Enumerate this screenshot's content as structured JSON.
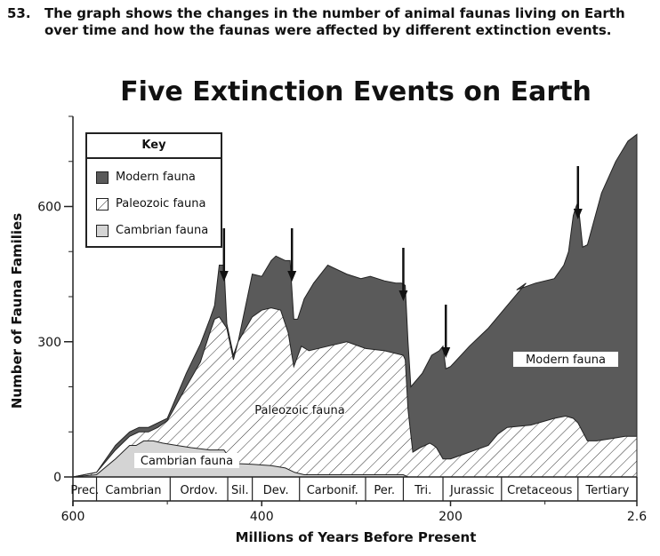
{
  "question": {
    "number": "53.",
    "text": "The graph shows the changes in the number of animal faunas living on Earth over time and how the faunas were affected by different extinction events."
  },
  "colors": {
    "modern": "#5a5a5a",
    "cambrian": "#d4d4d4",
    "hatch": "#333333"
  },
  "chart_data": {
    "type": "area",
    "title": "Five Extinction Events on Earth",
    "xlabel": "Millions of Years Before Present",
    "ylabel": "Number of Fauna Families",
    "x_reversed": true,
    "xlim": [
      600,
      2.6
    ],
    "ylim": [
      0,
      800
    ],
    "x_ticks": [
      {
        "value": 600,
        "label": "600"
      },
      {
        "value": 400,
        "label": "400"
      },
      {
        "value": 200,
        "label": "200"
      },
      {
        "value": 2.6,
        "label": "2.6"
      }
    ],
    "y_ticks": [
      {
        "value": 0,
        "label": "0"
      },
      {
        "value": 300,
        "label": "300"
      },
      {
        "value": 600,
        "label": "600"
      }
    ],
    "key": {
      "title": "Key",
      "entries": [
        {
          "label": "Modern fauna",
          "color": "#5a5a5a",
          "pattern": "solid"
        },
        {
          "label": "Paleozoic fauna",
          "color": "#333333",
          "pattern": "hatch"
        },
        {
          "label": "Cambrian fauna",
          "color": "#d4d4d4",
          "pattern": "solid"
        }
      ]
    },
    "region_labels": [
      "Modern fauna",
      "Paleozoic fauna",
      "Cambrian fauna"
    ],
    "periods": [
      {
        "label": "Prec.",
        "start": 600,
        "end": 575
      },
      {
        "label": "Cambrian",
        "start": 575,
        "end": 497
      },
      {
        "label": "Ordov.",
        "start": 497,
        "end": 436
      },
      {
        "label": "Sil.",
        "start": 436,
        "end": 410
      },
      {
        "label": "Dev.",
        "start": 410,
        "end": 360
      },
      {
        "label": "Carbonif.",
        "start": 360,
        "end": 290
      },
      {
        "label": "Per.",
        "start": 290,
        "end": 250
      },
      {
        "label": "Tri.",
        "start": 250,
        "end": 208
      },
      {
        "label": "Jurassic",
        "start": 208,
        "end": 146
      },
      {
        "label": "Cretaceous",
        "start": 146,
        "end": 65
      },
      {
        "label": "Tertiary",
        "start": 65,
        "end": 2.6
      }
    ],
    "extinction_events": [
      440,
      368,
      250,
      205,
      65
    ],
    "series": [
      {
        "name": "Cambrian fauna",
        "x": [
          600,
          575,
          555,
          540,
          533,
          525,
          515,
          505,
          490,
          475,
          455,
          440,
          430,
          410,
          390,
          375,
          365,
          355,
          300,
          250,
          245,
          2.6
        ],
        "y": [
          0,
          5,
          40,
          70,
          70,
          80,
          80,
          75,
          70,
          65,
          60,
          60,
          30,
          28,
          25,
          20,
          10,
          5,
          5,
          5,
          0,
          0
        ]
      },
      {
        "name": "Paleozoic fauna",
        "x": [
          600,
          575,
          555,
          540,
          530,
          520,
          510,
          500,
          480,
          465,
          455,
          450,
          445,
          437,
          430,
          425,
          410,
          400,
          390,
          380,
          372,
          366,
          358,
          350,
          330,
          310,
          290,
          270,
          250,
          248,
          245,
          240,
          232,
          222,
          218,
          215,
          208,
          200,
          180,
          160,
          150,
          140,
          115,
          90,
          78,
          70,
          65,
          60,
          55,
          45,
          30,
          15,
          2.6
        ],
        "y": [
          0,
          10,
          60,
          90,
          100,
          100,
          110,
          125,
          200,
          255,
          320,
          350,
          355,
          330,
          260,
          300,
          355,
          370,
          375,
          370,
          320,
          245,
          290,
          280,
          290,
          300,
          285,
          280,
          270,
          260,
          150,
          55,
          65,
          75,
          70,
          65,
          40,
          40,
          55,
          70,
          95,
          110,
          115,
          130,
          135,
          130,
          120,
          100,
          80,
          80,
          85,
          90,
          90
        ]
      },
      {
        "name": "Modern fauna",
        "x": [
          600,
          575,
          555,
          540,
          530,
          520,
          510,
          500,
          480,
          465,
          455,
          450,
          445,
          440,
          437,
          430,
          425,
          410,
          400,
          390,
          385,
          375,
          370,
          366,
          362,
          355,
          345,
          330,
          310,
          295,
          285,
          270,
          258,
          252,
          248,
          245,
          242,
          230,
          220,
          212,
          210,
          208,
          205,
          200,
          180,
          160,
          140,
          120,
          130,
          110,
          90,
          80,
          75,
          70,
          67,
          65,
          60,
          55,
          40,
          25,
          12,
          2.6
        ],
        "y": [
          0,
          10,
          70,
          100,
          110,
          110,
          120,
          130,
          230,
          295,
          350,
          380,
          470,
          470,
          340,
          270,
          300,
          450,
          445,
          480,
          490,
          480,
          480,
          350,
          350,
          395,
          430,
          470,
          450,
          440,
          445,
          435,
          430,
          430,
          425,
          300,
          200,
          230,
          270,
          280,
          285,
          290,
          240,
          245,
          290,
          330,
          380,
          430,
          415,
          430,
          440,
          470,
          500,
          580,
          600,
          610,
          510,
          515,
          630,
          700,
          745,
          760
        ]
      }
    ]
  }
}
